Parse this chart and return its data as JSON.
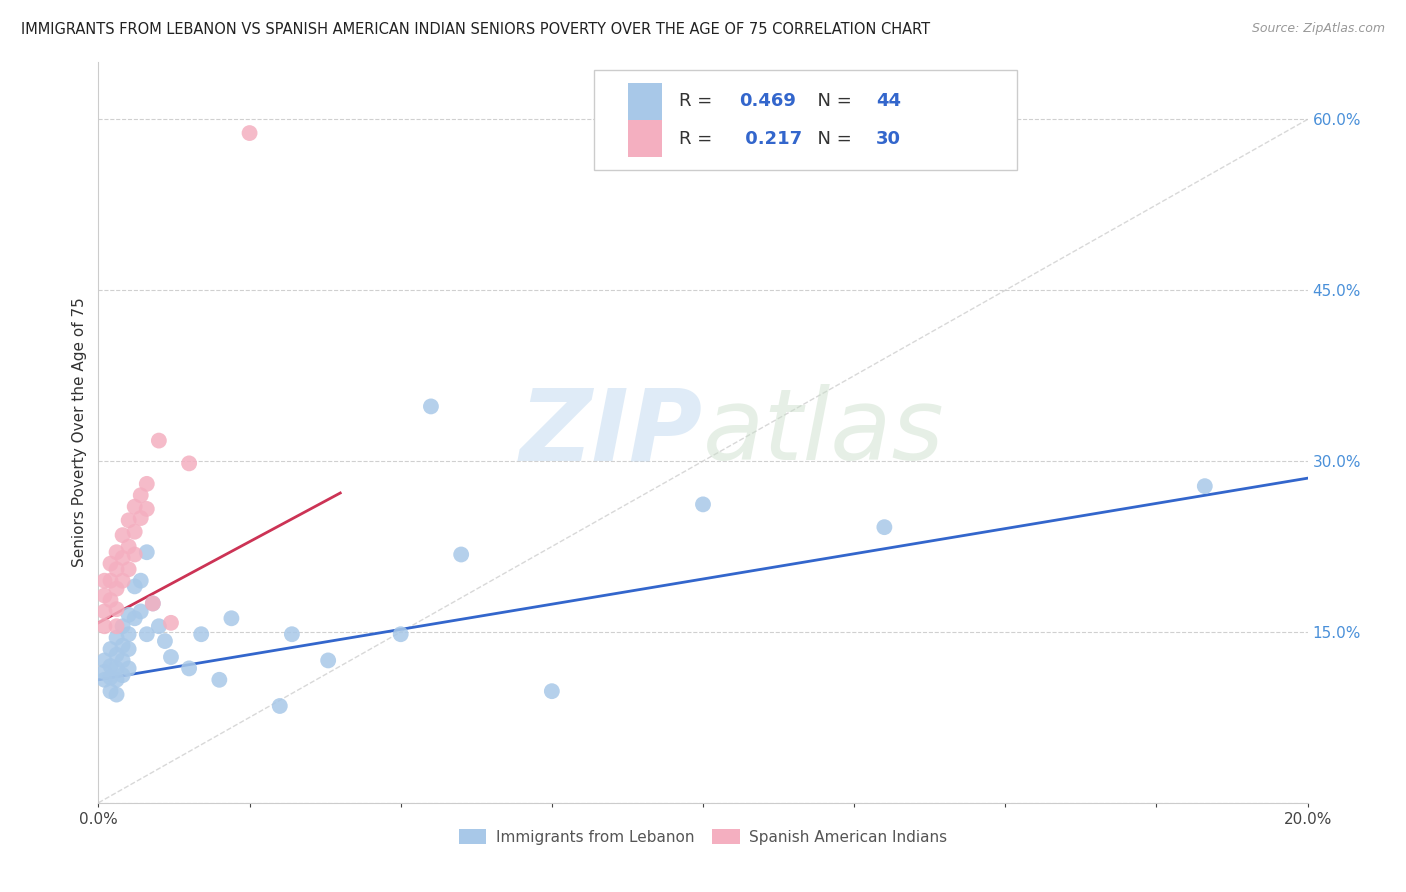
{
  "title": "IMMIGRANTS FROM LEBANON VS SPANISH AMERICAN INDIAN SENIORS POVERTY OVER THE AGE OF 75 CORRELATION CHART",
  "source": "Source: ZipAtlas.com",
  "ylabel": "Seniors Poverty Over the Age of 75",
  "xlim": [
    0.0,
    0.2
  ],
  "ylim": [
    0.0,
    0.65
  ],
  "x_ticks": [
    0.0,
    0.025,
    0.05,
    0.075,
    0.1,
    0.125,
    0.15,
    0.175,
    0.2
  ],
  "y_ticks_right": [
    0.0,
    0.15,
    0.3,
    0.45,
    0.6
  ],
  "blue_color": "#a8c8e8",
  "pink_color": "#f4afc0",
  "blue_line_color": "#3366cc",
  "pink_line_color": "#cc3355",
  "diag_line_color": "#c8c8c8",
  "legend_text_color": "#3366cc",
  "R_blue": 0.469,
  "N_blue": 44,
  "R_pink": 0.217,
  "N_pink": 30,
  "legend_label_blue": "Immigrants from Lebanon",
  "legend_label_pink": "Spanish American Indians",
  "watermark_zip": "ZIP",
  "watermark_atlas": "atlas",
  "blue_x": [
    0.001,
    0.001,
    0.001,
    0.002,
    0.002,
    0.002,
    0.002,
    0.003,
    0.003,
    0.003,
    0.003,
    0.003,
    0.004,
    0.004,
    0.004,
    0.004,
    0.005,
    0.005,
    0.005,
    0.005,
    0.006,
    0.006,
    0.007,
    0.007,
    0.008,
    0.008,
    0.009,
    0.01,
    0.011,
    0.012,
    0.015,
    0.017,
    0.02,
    0.022,
    0.03,
    0.032,
    0.038,
    0.05,
    0.055,
    0.06,
    0.075,
    0.1,
    0.13,
    0.183
  ],
  "blue_y": [
    0.125,
    0.115,
    0.108,
    0.135,
    0.12,
    0.11,
    0.098,
    0.145,
    0.13,
    0.118,
    0.108,
    0.095,
    0.155,
    0.138,
    0.125,
    0.112,
    0.165,
    0.148,
    0.135,
    0.118,
    0.19,
    0.162,
    0.195,
    0.168,
    0.22,
    0.148,
    0.175,
    0.155,
    0.142,
    0.128,
    0.118,
    0.148,
    0.108,
    0.162,
    0.085,
    0.148,
    0.125,
    0.148,
    0.348,
    0.218,
    0.098,
    0.262,
    0.242,
    0.278
  ],
  "pink_x": [
    0.001,
    0.001,
    0.001,
    0.001,
    0.002,
    0.002,
    0.002,
    0.003,
    0.003,
    0.003,
    0.003,
    0.003,
    0.004,
    0.004,
    0.004,
    0.005,
    0.005,
    0.005,
    0.006,
    0.006,
    0.006,
    0.007,
    0.007,
    0.008,
    0.008,
    0.009,
    0.01,
    0.012,
    0.015,
    0.025
  ],
  "pink_y": [
    0.195,
    0.182,
    0.168,
    0.155,
    0.21,
    0.195,
    0.178,
    0.22,
    0.205,
    0.188,
    0.17,
    0.155,
    0.235,
    0.215,
    0.195,
    0.248,
    0.225,
    0.205,
    0.26,
    0.238,
    0.218,
    0.27,
    0.25,
    0.28,
    0.258,
    0.175,
    0.318,
    0.158,
    0.298,
    0.588
  ],
  "blue_trend_x": [
    0.0,
    0.2
  ],
  "blue_trend_y": [
    0.108,
    0.285
  ],
  "pink_trend_x": [
    0.0,
    0.04
  ],
  "pink_trend_y": [
    0.158,
    0.272
  ],
  "diag_trend_x": [
    0.0,
    0.2
  ],
  "diag_trend_y": [
    0.0,
    0.6
  ]
}
